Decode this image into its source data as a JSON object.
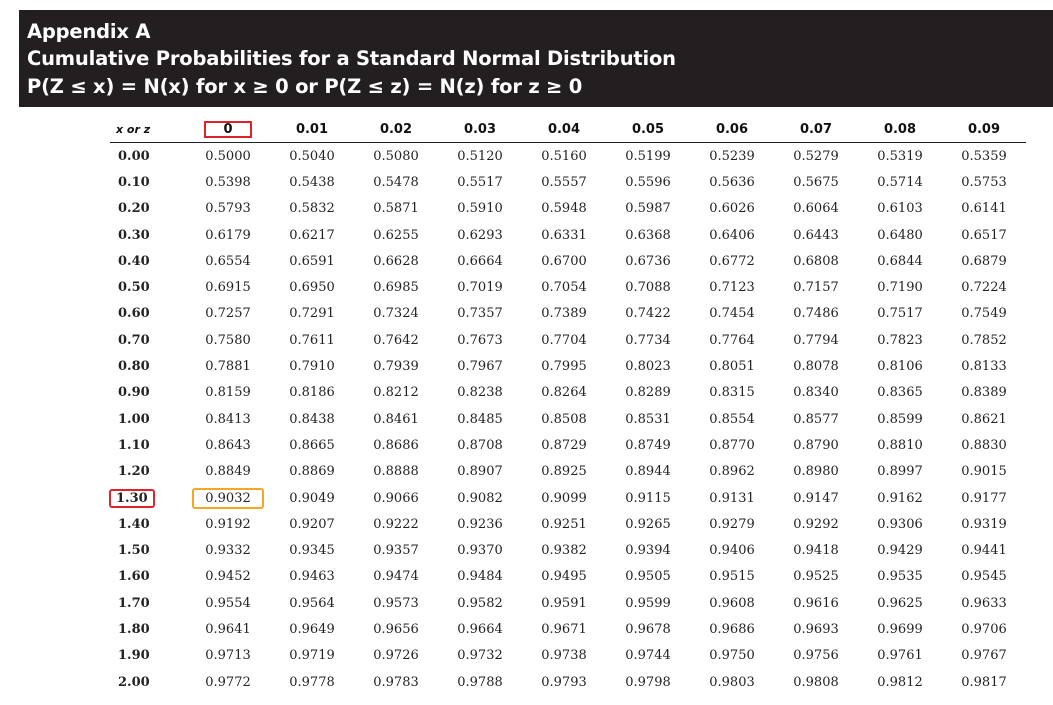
{
  "title": {
    "line1": "Appendix A",
    "line2": "Cumulative Probabilities for a Standard Normal Distribution",
    "line3": "P(Z ≤ x) = N(x) for x ≥ 0 or P(Z ≤ z) = N(z) for z ≥ 0"
  },
  "table": {
    "corner_label": "x or z",
    "columns": [
      "0",
      "0.01",
      "0.02",
      "0.03",
      "0.04",
      "0.05",
      "0.06",
      "0.07",
      "0.08",
      "0.09"
    ],
    "rows": [
      {
        "z": "0.00",
        "values": [
          "0.5000",
          "0.5040",
          "0.5080",
          "0.5120",
          "0.5160",
          "0.5199",
          "0.5239",
          "0.5279",
          "0.5319",
          "0.5359"
        ]
      },
      {
        "z": "0.10",
        "values": [
          "0.5398",
          "0.5438",
          "0.5478",
          "0.5517",
          "0.5557",
          "0.5596",
          "0.5636",
          "0.5675",
          "0.5714",
          "0.5753"
        ]
      },
      {
        "z": "0.20",
        "values": [
          "0.5793",
          "0.5832",
          "0.5871",
          "0.5910",
          "0.5948",
          "0.5987",
          "0.6026",
          "0.6064",
          "0.6103",
          "0.6141"
        ]
      },
      {
        "z": "0.30",
        "values": [
          "0.6179",
          "0.6217",
          "0.6255",
          "0.6293",
          "0.6331",
          "0.6368",
          "0.6406",
          "0.6443",
          "0.6480",
          "0.6517"
        ]
      },
      {
        "z": "0.40",
        "values": [
          "0.6554",
          "0.6591",
          "0.6628",
          "0.6664",
          "0.6700",
          "0.6736",
          "0.6772",
          "0.6808",
          "0.6844",
          "0.6879"
        ]
      },
      {
        "z": "0.50",
        "values": [
          "0.6915",
          "0.6950",
          "0.6985",
          "0.7019",
          "0.7054",
          "0.7088",
          "0.7123",
          "0.7157",
          "0.7190",
          "0.7224"
        ]
      },
      {
        "z": "0.60",
        "values": [
          "0.7257",
          "0.7291",
          "0.7324",
          "0.7357",
          "0.7389",
          "0.7422",
          "0.7454",
          "0.7486",
          "0.7517",
          "0.7549"
        ]
      },
      {
        "z": "0.70",
        "values": [
          "0.7580",
          "0.7611",
          "0.7642",
          "0.7673",
          "0.7704",
          "0.7734",
          "0.7764",
          "0.7794",
          "0.7823",
          "0.7852"
        ]
      },
      {
        "z": "0.80",
        "values": [
          "0.7881",
          "0.7910",
          "0.7939",
          "0.7967",
          "0.7995",
          "0.8023",
          "0.8051",
          "0.8078",
          "0.8106",
          "0.8133"
        ]
      },
      {
        "z": "0.90",
        "values": [
          "0.8159",
          "0.8186",
          "0.8212",
          "0.8238",
          "0.8264",
          "0.8289",
          "0.8315",
          "0.8340",
          "0.8365",
          "0.8389"
        ]
      },
      {
        "z": "1.00",
        "values": [
          "0.8413",
          "0.8438",
          "0.8461",
          "0.8485",
          "0.8508",
          "0.8531",
          "0.8554",
          "0.8577",
          "0.8599",
          "0.8621"
        ]
      },
      {
        "z": "1.10",
        "values": [
          "0.8643",
          "0.8665",
          "0.8686",
          "0.8708",
          "0.8729",
          "0.8749",
          "0.8770",
          "0.8790",
          "0.8810",
          "0.8830"
        ]
      },
      {
        "z": "1.20",
        "values": [
          "0.8849",
          "0.8869",
          "0.8888",
          "0.8907",
          "0.8925",
          "0.8944",
          "0.8962",
          "0.8980",
          "0.8997",
          "0.9015"
        ]
      },
      {
        "z": "1.30",
        "values": [
          "0.9032",
          "0.9049",
          "0.9066",
          "0.9082",
          "0.9099",
          "0.9115",
          "0.9131",
          "0.9147",
          "0.9162",
          "0.9177"
        ]
      },
      {
        "z": "1.40",
        "values": [
          "0.9192",
          "0.9207",
          "0.9222",
          "0.9236",
          "0.9251",
          "0.9265",
          "0.9279",
          "0.9292",
          "0.9306",
          "0.9319"
        ]
      },
      {
        "z": "1.50",
        "values": [
          "0.9332",
          "0.9345",
          "0.9357",
          "0.9370",
          "0.9382",
          "0.9394",
          "0.9406",
          "0.9418",
          "0.9429",
          "0.9441"
        ]
      },
      {
        "z": "1.60",
        "values": [
          "0.9452",
          "0.9463",
          "0.9474",
          "0.9484",
          "0.9495",
          "0.9505",
          "0.9515",
          "0.9525",
          "0.9535",
          "0.9545"
        ]
      },
      {
        "z": "1.70",
        "values": [
          "0.9554",
          "0.9564",
          "0.9573",
          "0.9582",
          "0.9591",
          "0.9599",
          "0.9608",
          "0.9616",
          "0.9625",
          "0.9633"
        ]
      },
      {
        "z": "1.80",
        "values": [
          "0.9641",
          "0.9649",
          "0.9656",
          "0.9664",
          "0.9671",
          "0.9678",
          "0.9686",
          "0.9693",
          "0.9699",
          "0.9706"
        ]
      },
      {
        "z": "1.90",
        "values": [
          "0.9713",
          "0.9719",
          "0.9726",
          "0.9732",
          "0.9738",
          "0.9744",
          "0.9750",
          "0.9756",
          "0.9761",
          "0.9767"
        ]
      },
      {
        "z": "2.00",
        "values": [
          "0.9772",
          "0.9778",
          "0.9783",
          "0.9788",
          "0.9793",
          "0.9798",
          "0.9803",
          "0.9808",
          "0.9812",
          "0.9817"
        ]
      }
    ]
  },
  "highlights": {
    "header_col": "0",
    "row_label": "1.30",
    "cell": "0.9032",
    "red": "#e0222a",
    "orange": "#f5a623"
  },
  "colors": {
    "banner_bg": "#231f20",
    "banner_text": "#ffffff"
  }
}
